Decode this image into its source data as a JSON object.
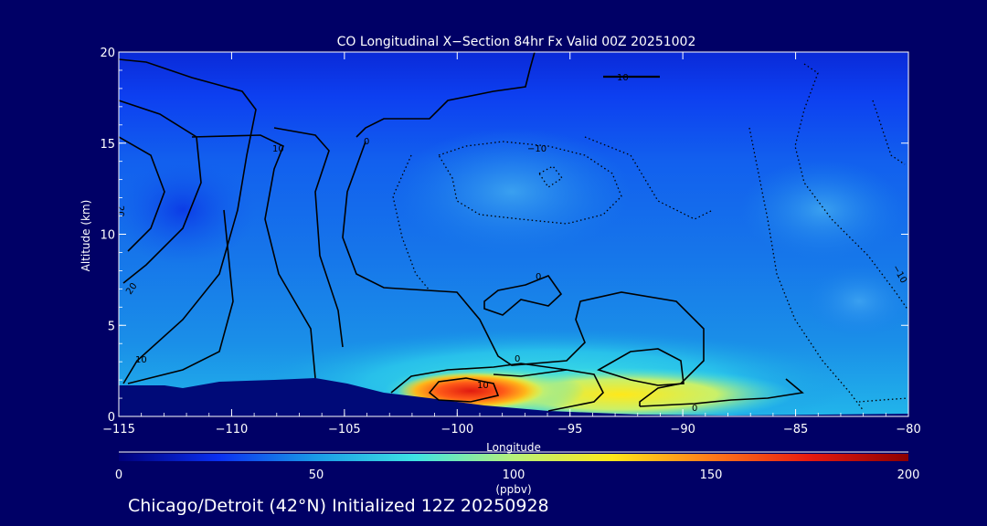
{
  "chart_data": {
    "type": "heatmap",
    "title": "CO Longitudinal X−Section 84hr  Fx Valid 00Z 20251002",
    "xlabel": "Longitude",
    "ylabel": "Altitude (km)",
    "xlim": [
      -115,
      -80
    ],
    "ylim": [
      0,
      20
    ],
    "x_ticks": [
      "−115",
      "−110",
      "−105",
      "−100",
      "−95",
      "−90",
      "−85",
      "−80"
    ],
    "y_ticks": [
      "0",
      "5",
      "10",
      "15",
      "20"
    ],
    "colorbar": {
      "min": 0,
      "max": 200,
      "unit": "(ppbv)",
      "tick_labels": [
        "0",
        "50",
        "100",
        "150",
        "200"
      ],
      "colors": [
        "#00007a",
        "#0a2ff0",
        "#1a9be6",
        "#3ee3e3",
        "#b7f07a",
        "#ffe81a",
        "#ff7a1a",
        "#e61a10",
        "#8c0000"
      ]
    },
    "contour_labels": [
      "10",
      "−10",
      "20",
      "0",
      "10",
      "20",
      "10",
      "0",
      "0",
      "10",
      "0",
      "−10",
      "−10"
    ],
    "footer": "Chicago/Detroit (42°N) Initialized 12Z 20250928"
  }
}
